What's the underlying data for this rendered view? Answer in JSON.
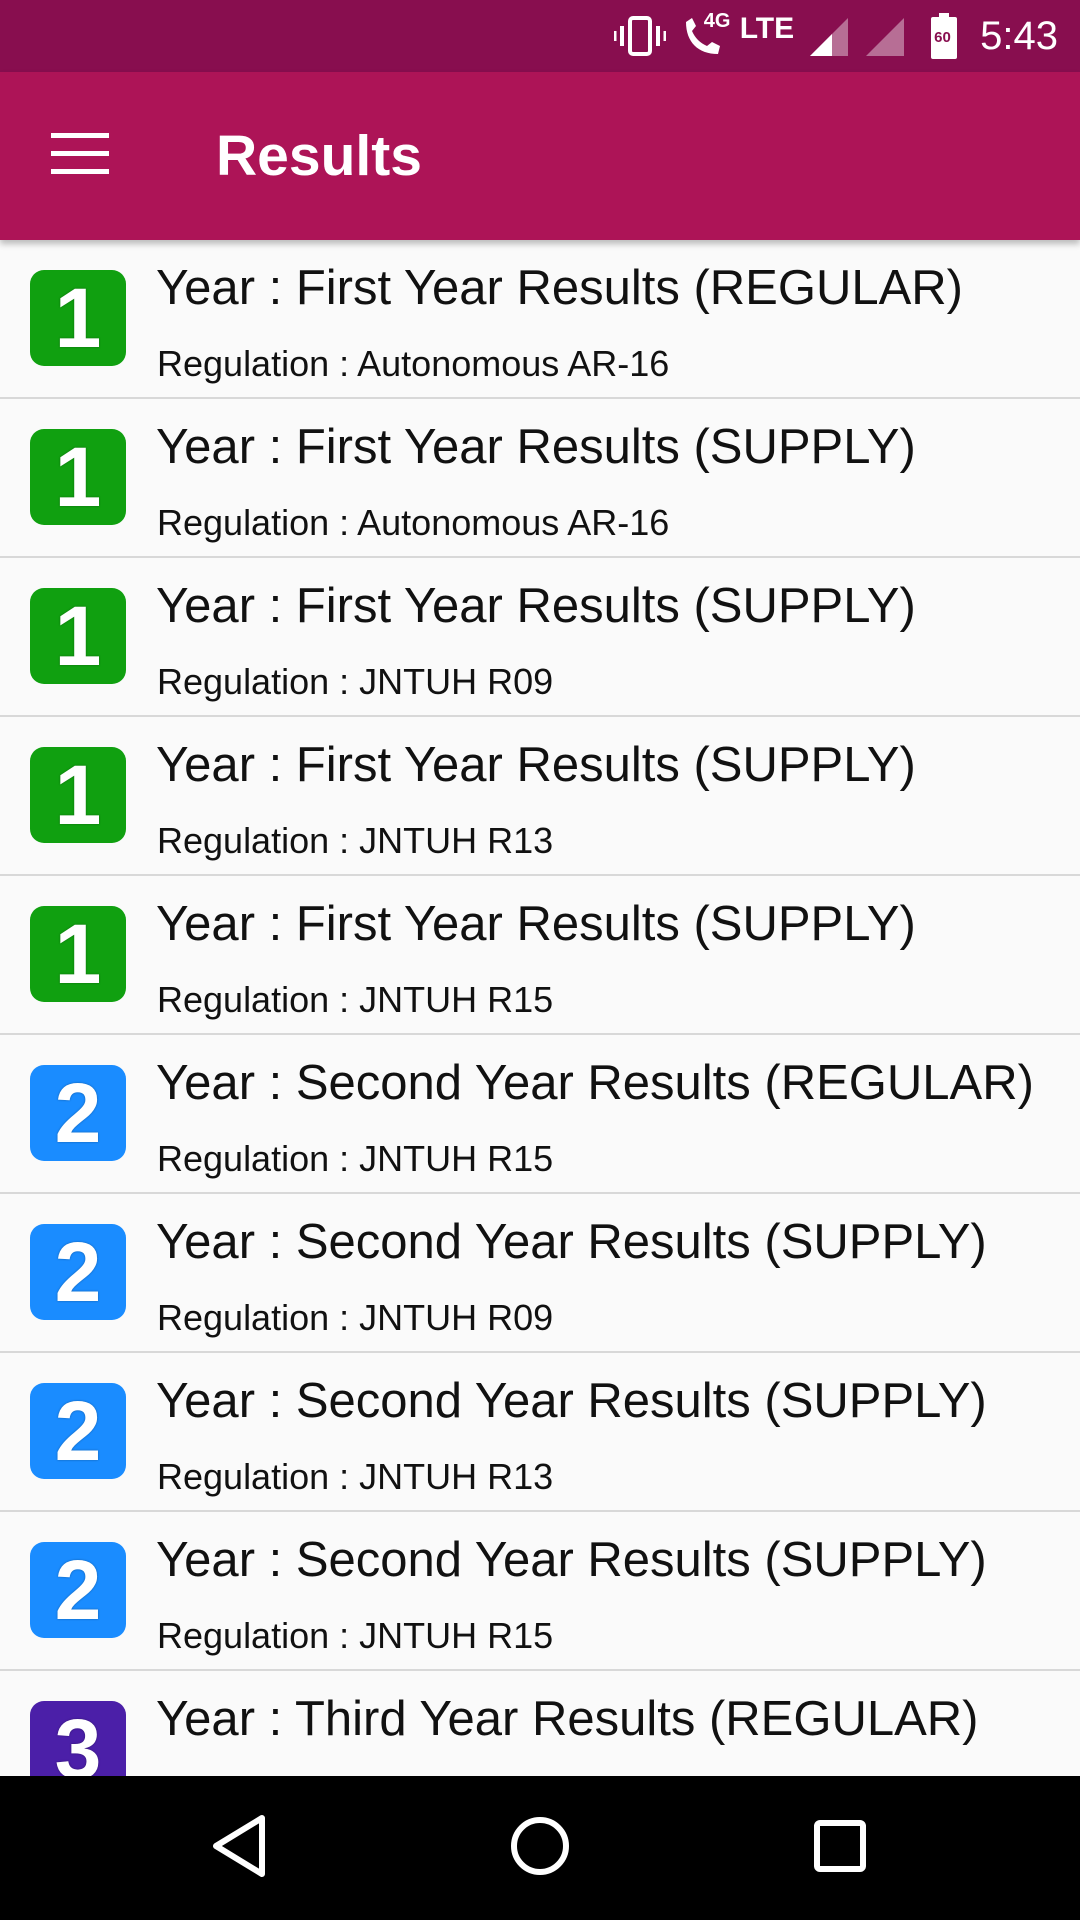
{
  "status_bar": {
    "network": "4G",
    "lte": "LTE",
    "battery": "60",
    "time": "5:43",
    "icons": [
      "vibrate-icon",
      "wifi-calling-icon",
      "signal-icon",
      "signal-icon",
      "battery-icon"
    ]
  },
  "app_bar": {
    "title": "Results",
    "menu_icon": "hamburger-menu-icon"
  },
  "colors": {
    "status_bar": "#880e4f",
    "app_bar": "#ad1457",
    "year1": "#10a010",
    "year2": "#1a8cff",
    "year3": "#4b1fa8"
  },
  "results": [
    {
      "badge": "1",
      "title": "Year : First Year Results (REGULAR)",
      "regulation": "Regulation : Autonomous AR-16"
    },
    {
      "badge": "1",
      "title": "Year : First Year Results (SUPPLY)",
      "regulation": "Regulation : Autonomous AR-16"
    },
    {
      "badge": "1",
      "title": "Year : First Year Results (SUPPLY)",
      "regulation": "Regulation : JNTUH R09"
    },
    {
      "badge": "1",
      "title": "Year : First Year Results (SUPPLY)",
      "regulation": "Regulation : JNTUH R13"
    },
    {
      "badge": "1",
      "title": "Year : First Year Results (SUPPLY)",
      "regulation": "Regulation : JNTUH R15"
    },
    {
      "badge": "2",
      "title": "Year : Second Year Results (REGULAR)",
      "regulation": "Regulation : JNTUH R15"
    },
    {
      "badge": "2",
      "title": "Year : Second Year Results (SUPPLY)",
      "regulation": "Regulation : JNTUH R09"
    },
    {
      "badge": "2",
      "title": "Year : Second Year Results (SUPPLY)",
      "regulation": "Regulation : JNTUH R13"
    },
    {
      "badge": "2",
      "title": "Year : Second Year Results (SUPPLY)",
      "regulation": "Regulation : JNTUH R15"
    },
    {
      "badge": "3",
      "title": "Year : Third Year Results (REGULAR)",
      "regulation": ""
    }
  ],
  "nav_bar": {
    "icons": [
      "back-icon",
      "home-icon",
      "recents-icon"
    ]
  }
}
